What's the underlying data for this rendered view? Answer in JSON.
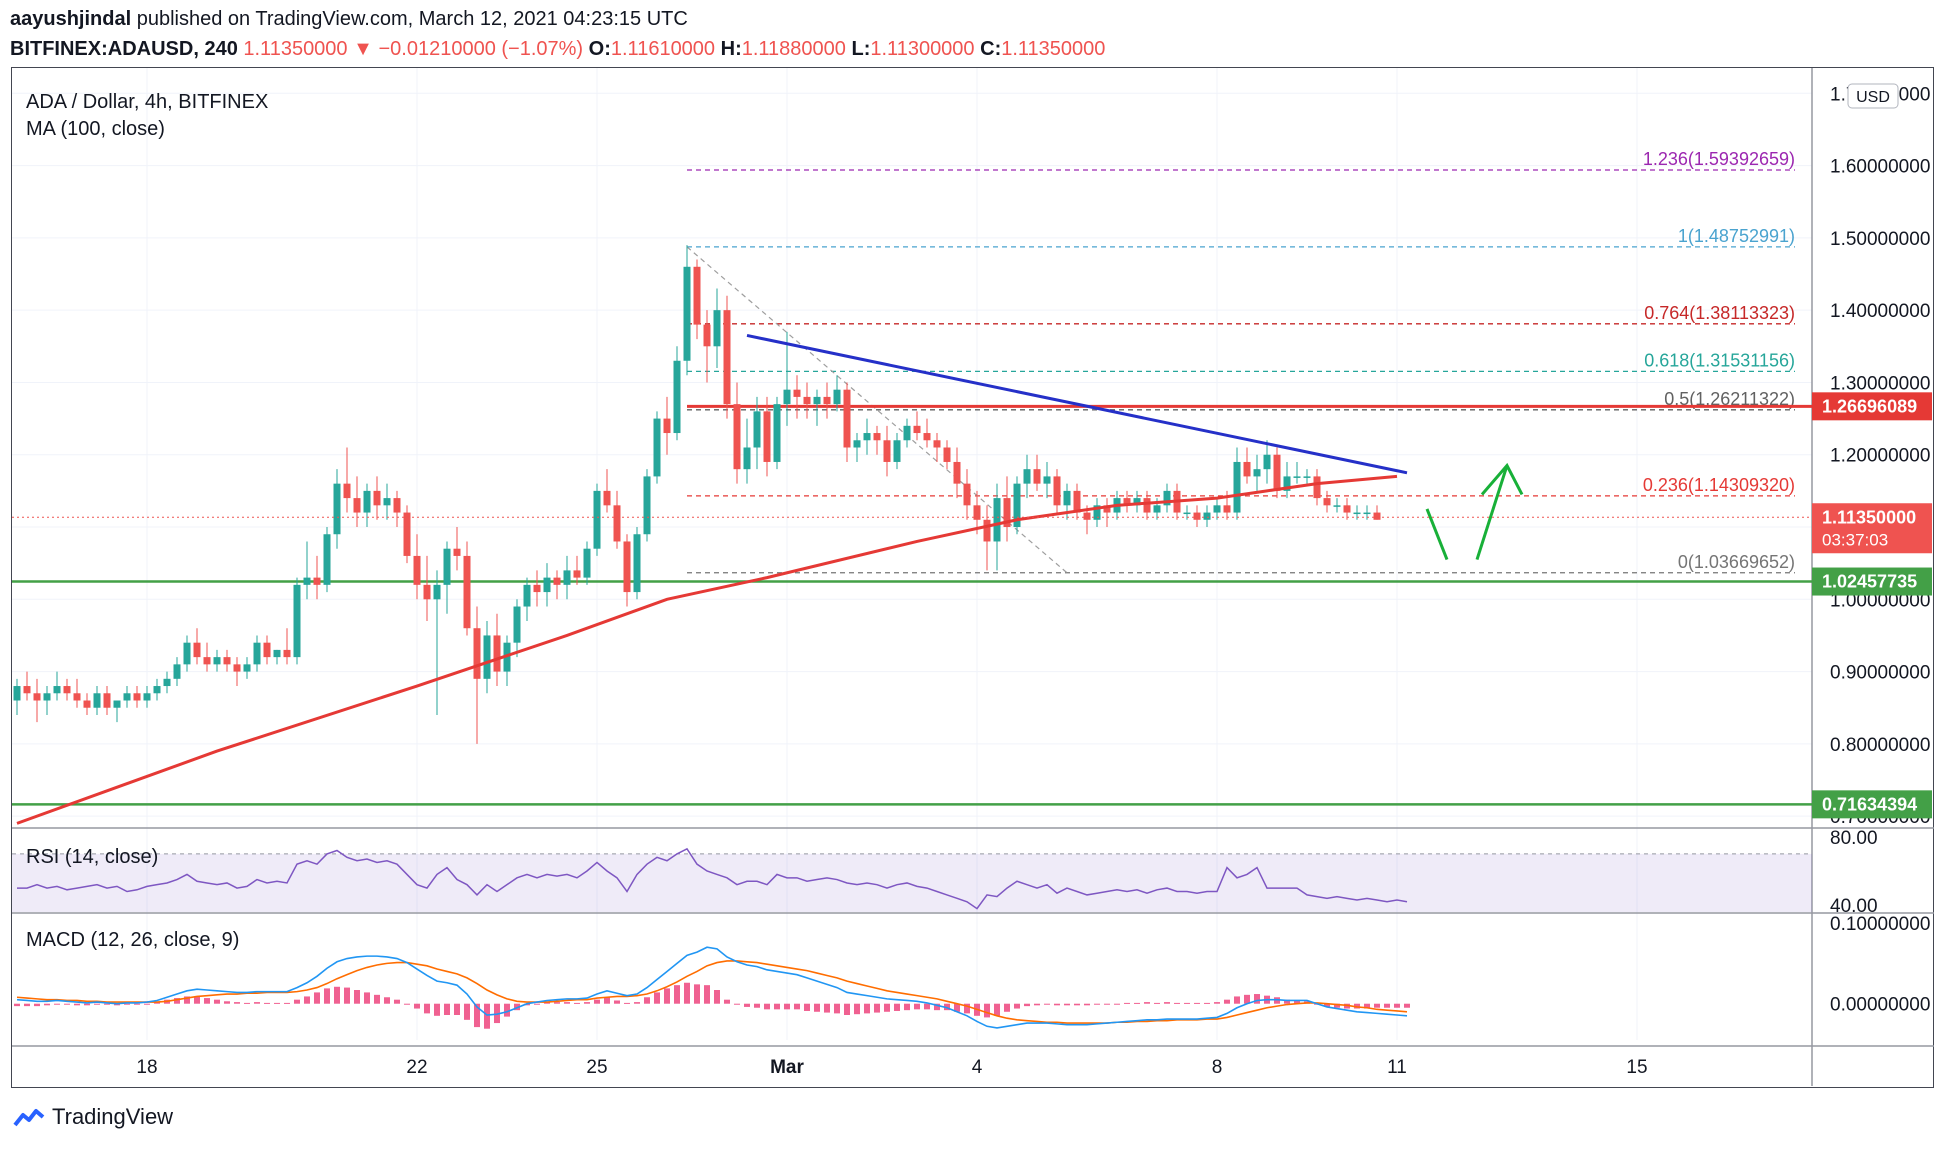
{
  "header": {
    "author": "aayushjindal",
    "published_text": "published on TradingView.com, March 12, 2021 04:23:15 UTC",
    "symbol": "BITFINEX:ADAUSD, 240",
    "last": "1.11350000",
    "change": "−0.01210000 (−1.07%)",
    "o_label": "O:",
    "o": "1.11610000",
    "h_label": "H:",
    "h": "1.11880000",
    "l_label": "L:",
    "l": "1.11300000",
    "c_label": "C:",
    "c": "1.11350000"
  },
  "legend": {
    "title": "ADA / Dollar, 4h, BITFINEX",
    "ma": "MA (100, close)",
    "rsi": "RSI (14, close)",
    "macd": "MACD (12, 26, close, 9)"
  },
  "currency_badge": "USD",
  "footer": {
    "brand": "TradingView"
  },
  "colors": {
    "up": "#26a69a",
    "down": "#ef5350",
    "ma": "#e53935",
    "trendline": "#2530c8",
    "support": "#43a047",
    "resistance": "#e53935",
    "rsi": "#7e57c2",
    "macd": "#2196f3",
    "signal": "#ff6d00",
    "arrow": "#18b038"
  },
  "chart_data": {
    "type": "candlestick",
    "price_axis": {
      "ticks": [
        "0.70000000",
        "0.80000000",
        "0.90000000",
        "1.00000000",
        "1.10000000",
        "1.20000000",
        "1.30000000",
        "1.40000000",
        "1.50000000",
        "1.60000000",
        "1.70000000"
      ],
      "tick_values": [
        0.7,
        0.8,
        0.9,
        1.0,
        1.1,
        1.2,
        1.3,
        1.4,
        1.5,
        1.6,
        1.7
      ],
      "ylim": [
        0.685,
        1.735
      ]
    },
    "time_axis": {
      "labels": [
        "18",
        "22",
        "25",
        "Mar",
        "4",
        "8",
        "11",
        "15"
      ],
      "label_bars": [
        13,
        40,
        58,
        77,
        96,
        120,
        138,
        162
      ]
    },
    "bar_count_visible": 180,
    "ohlc": [
      [
        0.86,
        0.89,
        0.84,
        0.88
      ],
      [
        0.88,
        0.9,
        0.86,
        0.87
      ],
      [
        0.87,
        0.89,
        0.83,
        0.86
      ],
      [
        0.86,
        0.88,
        0.84,
        0.87
      ],
      [
        0.87,
        0.9,
        0.86,
        0.88
      ],
      [
        0.88,
        0.89,
        0.86,
        0.87
      ],
      [
        0.87,
        0.89,
        0.85,
        0.86
      ],
      [
        0.86,
        0.87,
        0.84,
        0.85
      ],
      [
        0.85,
        0.88,
        0.84,
        0.87
      ],
      [
        0.87,
        0.88,
        0.84,
        0.85
      ],
      [
        0.85,
        0.86,
        0.83,
        0.86
      ],
      [
        0.86,
        0.88,
        0.85,
        0.87
      ],
      [
        0.87,
        0.88,
        0.85,
        0.86
      ],
      [
        0.86,
        0.88,
        0.85,
        0.87
      ],
      [
        0.87,
        0.89,
        0.86,
        0.88
      ],
      [
        0.88,
        0.9,
        0.87,
        0.89
      ],
      [
        0.89,
        0.92,
        0.88,
        0.91
      ],
      [
        0.91,
        0.95,
        0.9,
        0.94
      ],
      [
        0.94,
        0.96,
        0.91,
        0.92
      ],
      [
        0.92,
        0.94,
        0.9,
        0.91
      ],
      [
        0.91,
        0.93,
        0.9,
        0.92
      ],
      [
        0.92,
        0.93,
        0.9,
        0.91
      ],
      [
        0.91,
        0.92,
        0.88,
        0.9
      ],
      [
        0.9,
        0.92,
        0.89,
        0.91
      ],
      [
        0.91,
        0.95,
        0.9,
        0.94
      ],
      [
        0.94,
        0.95,
        0.91,
        0.92
      ],
      [
        0.92,
        0.93,
        0.91,
        0.93
      ],
      [
        0.93,
        0.96,
        0.91,
        0.92
      ],
      [
        0.92,
        1.03,
        0.91,
        1.02
      ],
      [
        1.02,
        1.08,
        1.0,
        1.03
      ],
      [
        1.03,
        1.06,
        1.0,
        1.02
      ],
      [
        1.02,
        1.1,
        1.01,
        1.09
      ],
      [
        1.09,
        1.18,
        1.07,
        1.16
      ],
      [
        1.16,
        1.21,
        1.12,
        1.14
      ],
      [
        1.14,
        1.17,
        1.1,
        1.12
      ],
      [
        1.12,
        1.16,
        1.1,
        1.15
      ],
      [
        1.15,
        1.17,
        1.11,
        1.13
      ],
      [
        1.13,
        1.16,
        1.11,
        1.14
      ],
      [
        1.14,
        1.15,
        1.1,
        1.12
      ],
      [
        1.12,
        1.13,
        1.05,
        1.06
      ],
      [
        1.06,
        1.09,
        1.0,
        1.02
      ],
      [
        1.02,
        1.06,
        0.97,
        1.0
      ],
      [
        1.0,
        1.04,
        0.84,
        1.02
      ],
      [
        1.02,
        1.08,
        0.98,
        1.07
      ],
      [
        1.07,
        1.1,
        1.04,
        1.06
      ],
      [
        1.06,
        1.08,
        0.95,
        0.96
      ],
      [
        0.96,
        0.99,
        0.8,
        0.89
      ],
      [
        0.89,
        0.97,
        0.87,
        0.95
      ],
      [
        0.95,
        0.98,
        0.88,
        0.9
      ],
      [
        0.9,
        0.95,
        0.88,
        0.94
      ],
      [
        0.94,
        1.0,
        0.92,
        0.99
      ],
      [
        0.99,
        1.03,
        0.97,
        1.02
      ],
      [
        1.02,
        1.04,
        0.99,
        1.01
      ],
      [
        1.01,
        1.05,
        0.99,
        1.03
      ],
      [
        1.03,
        1.04,
        1.0,
        1.02
      ],
      [
        1.02,
        1.06,
        1.0,
        1.04
      ],
      [
        1.04,
        1.06,
        1.02,
        1.03
      ],
      [
        1.03,
        1.08,
        1.02,
        1.07
      ],
      [
        1.07,
        1.16,
        1.06,
        1.15
      ],
      [
        1.15,
        1.18,
        1.12,
        1.13
      ],
      [
        1.13,
        1.15,
        1.07,
        1.08
      ],
      [
        1.08,
        1.09,
        0.99,
        1.01
      ],
      [
        1.01,
        1.1,
        1.0,
        1.09
      ],
      [
        1.09,
        1.18,
        1.08,
        1.17
      ],
      [
        1.17,
        1.26,
        1.16,
        1.25
      ],
      [
        1.25,
        1.28,
        1.2,
        1.23
      ],
      [
        1.23,
        1.35,
        1.22,
        1.33
      ],
      [
        1.33,
        1.49,
        1.31,
        1.46
      ],
      [
        1.46,
        1.47,
        1.36,
        1.38
      ],
      [
        1.38,
        1.4,
        1.3,
        1.35
      ],
      [
        1.35,
        1.43,
        1.32,
        1.4
      ],
      [
        1.4,
        1.42,
        1.25,
        1.27
      ],
      [
        1.27,
        1.3,
        1.16,
        1.18
      ],
      [
        1.18,
        1.25,
        1.16,
        1.21
      ],
      [
        1.21,
        1.28,
        1.18,
        1.26
      ],
      [
        1.26,
        1.28,
        1.17,
        1.19
      ],
      [
        1.19,
        1.28,
        1.18,
        1.27
      ],
      [
        1.27,
        1.37,
        1.24,
        1.29
      ],
      [
        1.29,
        1.31,
        1.25,
        1.28
      ],
      [
        1.28,
        1.3,
        1.25,
        1.27
      ],
      [
        1.27,
        1.29,
        1.24,
        1.28
      ],
      [
        1.28,
        1.3,
        1.25,
        1.27
      ],
      [
        1.27,
        1.31,
        1.26,
        1.29
      ],
      [
        1.29,
        1.3,
        1.19,
        1.21
      ],
      [
        1.21,
        1.23,
        1.19,
        1.22
      ],
      [
        1.22,
        1.25,
        1.2,
        1.23
      ],
      [
        1.23,
        1.24,
        1.2,
        1.22
      ],
      [
        1.22,
        1.24,
        1.17,
        1.19
      ],
      [
        1.19,
        1.23,
        1.18,
        1.22
      ],
      [
        1.22,
        1.25,
        1.21,
        1.24
      ],
      [
        1.24,
        1.26,
        1.22,
        1.23
      ],
      [
        1.23,
        1.25,
        1.21,
        1.22
      ],
      [
        1.22,
        1.23,
        1.19,
        1.21
      ],
      [
        1.21,
        1.22,
        1.18,
        1.19
      ],
      [
        1.19,
        1.21,
        1.14,
        1.16
      ],
      [
        1.16,
        1.18,
        1.11,
        1.13
      ],
      [
        1.13,
        1.15,
        1.09,
        1.11
      ],
      [
        1.11,
        1.13,
        1.04,
        1.08
      ],
      [
        1.08,
        1.16,
        1.04,
        1.14
      ],
      [
        1.14,
        1.17,
        1.08,
        1.1
      ],
      [
        1.1,
        1.17,
        1.09,
        1.16
      ],
      [
        1.16,
        1.2,
        1.14,
        1.18
      ],
      [
        1.18,
        1.2,
        1.15,
        1.16
      ],
      [
        1.16,
        1.19,
        1.14,
        1.17
      ],
      [
        1.17,
        1.18,
        1.12,
        1.13
      ],
      [
        1.13,
        1.16,
        1.11,
        1.15
      ],
      [
        1.15,
        1.16,
        1.11,
        1.12
      ],
      [
        1.12,
        1.13,
        1.09,
        1.11
      ],
      [
        1.11,
        1.14,
        1.1,
        1.13
      ],
      [
        1.13,
        1.14,
        1.1,
        1.12
      ],
      [
        1.12,
        1.15,
        1.11,
        1.14
      ],
      [
        1.14,
        1.15,
        1.12,
        1.13
      ],
      [
        1.13,
        1.15,
        1.12,
        1.14
      ],
      [
        1.14,
        1.15,
        1.11,
        1.12
      ],
      [
        1.12,
        1.14,
        1.11,
        1.13
      ],
      [
        1.13,
        1.16,
        1.12,
        1.15
      ],
      [
        1.15,
        1.16,
        1.11,
        1.12
      ],
      [
        1.12,
        1.13,
        1.11,
        1.12
      ],
      [
        1.12,
        1.13,
        1.1,
        1.11
      ],
      [
        1.11,
        1.13,
        1.1,
        1.12
      ],
      [
        1.12,
        1.14,
        1.11,
        1.13
      ],
      [
        1.13,
        1.15,
        1.11,
        1.12
      ],
      [
        1.12,
        1.21,
        1.11,
        1.19
      ],
      [
        1.19,
        1.21,
        1.16,
        1.17
      ],
      [
        1.17,
        1.2,
        1.15,
        1.18
      ],
      [
        1.18,
        1.22,
        1.16,
        1.2
      ],
      [
        1.2,
        1.21,
        1.14,
        1.15
      ],
      [
        1.15,
        1.19,
        1.14,
        1.17
      ],
      [
        1.17,
        1.19,
        1.16,
        1.17
      ],
      [
        1.17,
        1.18,
        1.16,
        1.17
      ],
      [
        1.17,
        1.18,
        1.13,
        1.14
      ],
      [
        1.14,
        1.15,
        1.12,
        1.13
      ],
      [
        1.13,
        1.14,
        1.12,
        1.13
      ],
      [
        1.13,
        1.14,
        1.11,
        1.12
      ],
      [
        1.12,
        1.13,
        1.11,
        1.12
      ],
      [
        1.12,
        1.13,
        1.11,
        1.12
      ],
      [
        1.12,
        1.13,
        1.11,
        1.11
      ]
    ],
    "ma_100": {
      "bar": [
        0,
        20,
        40,
        55,
        65,
        75,
        90,
        100,
        110,
        120,
        125,
        130,
        138
      ],
      "value": [
        0.69,
        0.79,
        0.88,
        0.95,
        1.0,
        1.03,
        1.08,
        1.11,
        1.13,
        1.14,
        1.15,
        1.16,
        1.17
      ]
    },
    "fibonacci": [
      {
        "label": "1.236(1.59392659)",
        "value": 1.59392659,
        "color": "#9c27b0"
      },
      {
        "label": "1(1.48752991)",
        "value": 1.48752991,
        "color": "#4aa3cf"
      },
      {
        "label": "0.764(1.38113323)",
        "value": 1.38113323,
        "color": "#c62828"
      },
      {
        "label": "0.618(1.31531156)",
        "value": 1.31531156,
        "color": "#26a69a"
      },
      {
        "label": "0.5(1.26211322)",
        "value": 1.26211322,
        "color": "#616161"
      },
      {
        "label": "0.236(1.14309320)",
        "value": 1.1430932,
        "color": "#e53935"
      },
      {
        "label": "0(1.03669652)",
        "value": 1.03669652,
        "color": "#757575"
      }
    ],
    "fib_start_bar": 67,
    "trendline": {
      "bar": [
        73,
        139
      ],
      "value": [
        1.365,
        1.175
      ]
    },
    "resistance": {
      "value": 1.26696089,
      "label": "1.26696089",
      "from_bar": 67
    },
    "supports": [
      {
        "value": 1.02457735,
        "label": "1.02457735"
      },
      {
        "value": 0.71634394,
        "label": "0.71634394"
      }
    ],
    "last_price": {
      "value": 1.1135,
      "label": "1.11350000",
      "countdown": "03:37:03"
    },
    "rsi": {
      "ticks": [
        "80.00",
        "40.00"
      ],
      "tick_values": [
        80,
        40
      ],
      "ylim": [
        36,
        84
      ],
      "band": [
        30,
        70
      ],
      "values": [
        50,
        50,
        52,
        50,
        51,
        49,
        50,
        51,
        52,
        50,
        51,
        48,
        49,
        51,
        52,
        53,
        55,
        58,
        54,
        53,
        52,
        53,
        50,
        51,
        55,
        53,
        54,
        53,
        64,
        66,
        64,
        70,
        72,
        68,
        66,
        67,
        65,
        66,
        64,
        58,
        52,
        50,
        58,
        62,
        55,
        52,
        46,
        52,
        48,
        52,
        56,
        58,
        56,
        58,
        57,
        58,
        56,
        60,
        65,
        60,
        56,
        48,
        58,
        64,
        68,
        66,
        70,
        73,
        64,
        60,
        58,
        56,
        52,
        54,
        54,
        52,
        58,
        56,
        56,
        54,
        55,
        56,
        55,
        53,
        52,
        53,
        52,
        50,
        52,
        53,
        51,
        50,
        48,
        46,
        44,
        42,
        38,
        46,
        45,
        50,
        54,
        52,
        50,
        52,
        47,
        50,
        48,
        46,
        47,
        48,
        49,
        48,
        49,
        47,
        49,
        50,
        48,
        48,
        47,
        48,
        48,
        62,
        56,
        58,
        62,
        50,
        50,
        50,
        50,
        46,
        45,
        44,
        45,
        44,
        43,
        44,
        43,
        42,
        43,
        42
      ]
    },
    "macd": {
      "ticks": [
        "0.10000000",
        "0.00000000"
      ],
      "tick_values": [
        0.1,
        0.0
      ],
      "ylim": [
        -0.045,
        0.11
      ],
      "macd": [
        0.005,
        0.004,
        0.003,
        0.003,
        0.004,
        0.003,
        0.002,
        0.001,
        0.002,
        0.001,
        0.0,
        0.001,
        0.001,
        0.002,
        0.004,
        0.008,
        0.012,
        0.016,
        0.018,
        0.017,
        0.016,
        0.015,
        0.014,
        0.014,
        0.015,
        0.015,
        0.015,
        0.015,
        0.02,
        0.026,
        0.034,
        0.044,
        0.052,
        0.056,
        0.058,
        0.059,
        0.059,
        0.058,
        0.056,
        0.051,
        0.043,
        0.035,
        0.028,
        0.026,
        0.023,
        0.012,
        -0.004,
        -0.014,
        -0.013,
        -0.01,
        -0.005,
        0.0,
        0.002,
        0.004,
        0.005,
        0.006,
        0.006,
        0.007,
        0.012,
        0.016,
        0.013,
        0.01,
        0.012,
        0.02,
        0.03,
        0.04,
        0.05,
        0.06,
        0.064,
        0.07,
        0.068,
        0.058,
        0.052,
        0.048,
        0.046,
        0.042,
        0.04,
        0.038,
        0.036,
        0.032,
        0.028,
        0.024,
        0.02,
        0.014,
        0.012,
        0.01,
        0.008,
        0.006,
        0.005,
        0.004,
        0.003,
        0.001,
        -0.002,
        -0.005,
        -0.01,
        -0.015,
        -0.022,
        -0.028,
        -0.03,
        -0.028,
        -0.026,
        -0.024,
        -0.024,
        -0.024,
        -0.025,
        -0.026,
        -0.026,
        -0.026,
        -0.025,
        -0.024,
        -0.023,
        -0.022,
        -0.021,
        -0.02,
        -0.02,
        -0.019,
        -0.019,
        -0.019,
        -0.019,
        -0.018,
        -0.017,
        -0.012,
        -0.005,
        0.0,
        0.004,
        0.005,
        0.005,
        0.004,
        0.004,
        0.004,
        0.0,
        -0.004,
        -0.006,
        -0.008,
        -0.01,
        -0.011,
        -0.012,
        -0.013,
        -0.014,
        -0.015
      ],
      "signal": [
        0.008,
        0.007,
        0.006,
        0.005,
        0.005,
        0.004,
        0.004,
        0.003,
        0.003,
        0.002,
        0.002,
        0.002,
        0.002,
        0.002,
        0.002,
        0.003,
        0.005,
        0.007,
        0.009,
        0.01,
        0.011,
        0.012,
        0.012,
        0.013,
        0.013,
        0.014,
        0.014,
        0.014,
        0.015,
        0.017,
        0.02,
        0.025,
        0.031,
        0.036,
        0.041,
        0.045,
        0.048,
        0.05,
        0.051,
        0.051,
        0.049,
        0.047,
        0.043,
        0.04,
        0.037,
        0.032,
        0.025,
        0.017,
        0.011,
        0.006,
        0.003,
        0.002,
        0.002,
        0.002,
        0.003,
        0.004,
        0.005,
        0.005,
        0.007,
        0.008,
        0.009,
        0.009,
        0.01,
        0.012,
        0.016,
        0.021,
        0.027,
        0.034,
        0.04,
        0.047,
        0.051,
        0.053,
        0.053,
        0.052,
        0.051,
        0.049,
        0.047,
        0.045,
        0.043,
        0.041,
        0.038,
        0.035,
        0.032,
        0.028,
        0.025,
        0.022,
        0.019,
        0.016,
        0.014,
        0.012,
        0.01,
        0.008,
        0.006,
        0.003,
        0.0,
        -0.003,
        -0.007,
        -0.011,
        -0.015,
        -0.018,
        -0.02,
        -0.021,
        -0.022,
        -0.023,
        -0.023,
        -0.024,
        -0.024,
        -0.024,
        -0.024,
        -0.024,
        -0.023,
        -0.023,
        -0.022,
        -0.022,
        -0.021,
        -0.021,
        -0.02,
        -0.02,
        -0.02,
        -0.019,
        -0.019,
        -0.017,
        -0.014,
        -0.011,
        -0.008,
        -0.005,
        -0.003,
        -0.001,
        0.0,
        0.001,
        0.001,
        0.0,
        -0.001,
        -0.002,
        -0.004,
        -0.005,
        -0.007,
        -0.008,
        -0.009,
        -0.01
      ]
    }
  }
}
